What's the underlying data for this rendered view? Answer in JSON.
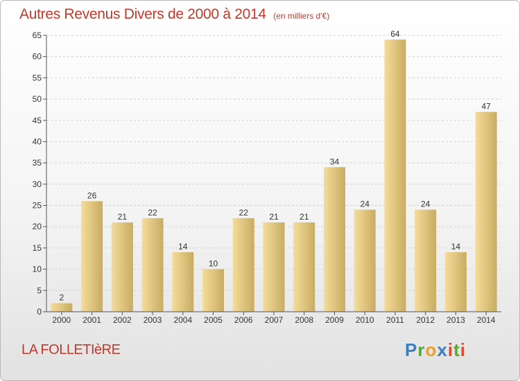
{
  "header": {
    "title": "Autres Revenus Divers de 2000 à 2014",
    "subtitle": "(en milliers d'€)"
  },
  "footer": {
    "commune": "LA FOLLETIèRE",
    "logo_text": "Proxiti"
  },
  "colors": {
    "title": "#c0392b",
    "bar_light": "#f5dc9a",
    "bar_dark": "#c9ac63",
    "grid": "#cfcfcf"
  },
  "chart_data": {
    "type": "bar",
    "title": "Autres Revenus Divers de 2000 à 2014",
    "subtitle": "(en milliers d'€)",
    "xlabel": "",
    "ylabel": "",
    "categories": [
      "2000",
      "2001",
      "2002",
      "2003",
      "2004",
      "2005",
      "2006",
      "2007",
      "2008",
      "2009",
      "2010",
      "2011",
      "2012",
      "2013",
      "2014"
    ],
    "values": [
      2,
      26,
      21,
      22,
      14,
      10,
      22,
      21,
      21,
      34,
      24,
      64,
      24,
      14,
      47
    ],
    "ylim": [
      0,
      65
    ],
    "yticks": [
      0,
      5,
      10,
      15,
      20,
      25,
      30,
      35,
      40,
      45,
      50,
      55,
      60,
      65
    ],
    "grid": true,
    "legend": "none"
  }
}
